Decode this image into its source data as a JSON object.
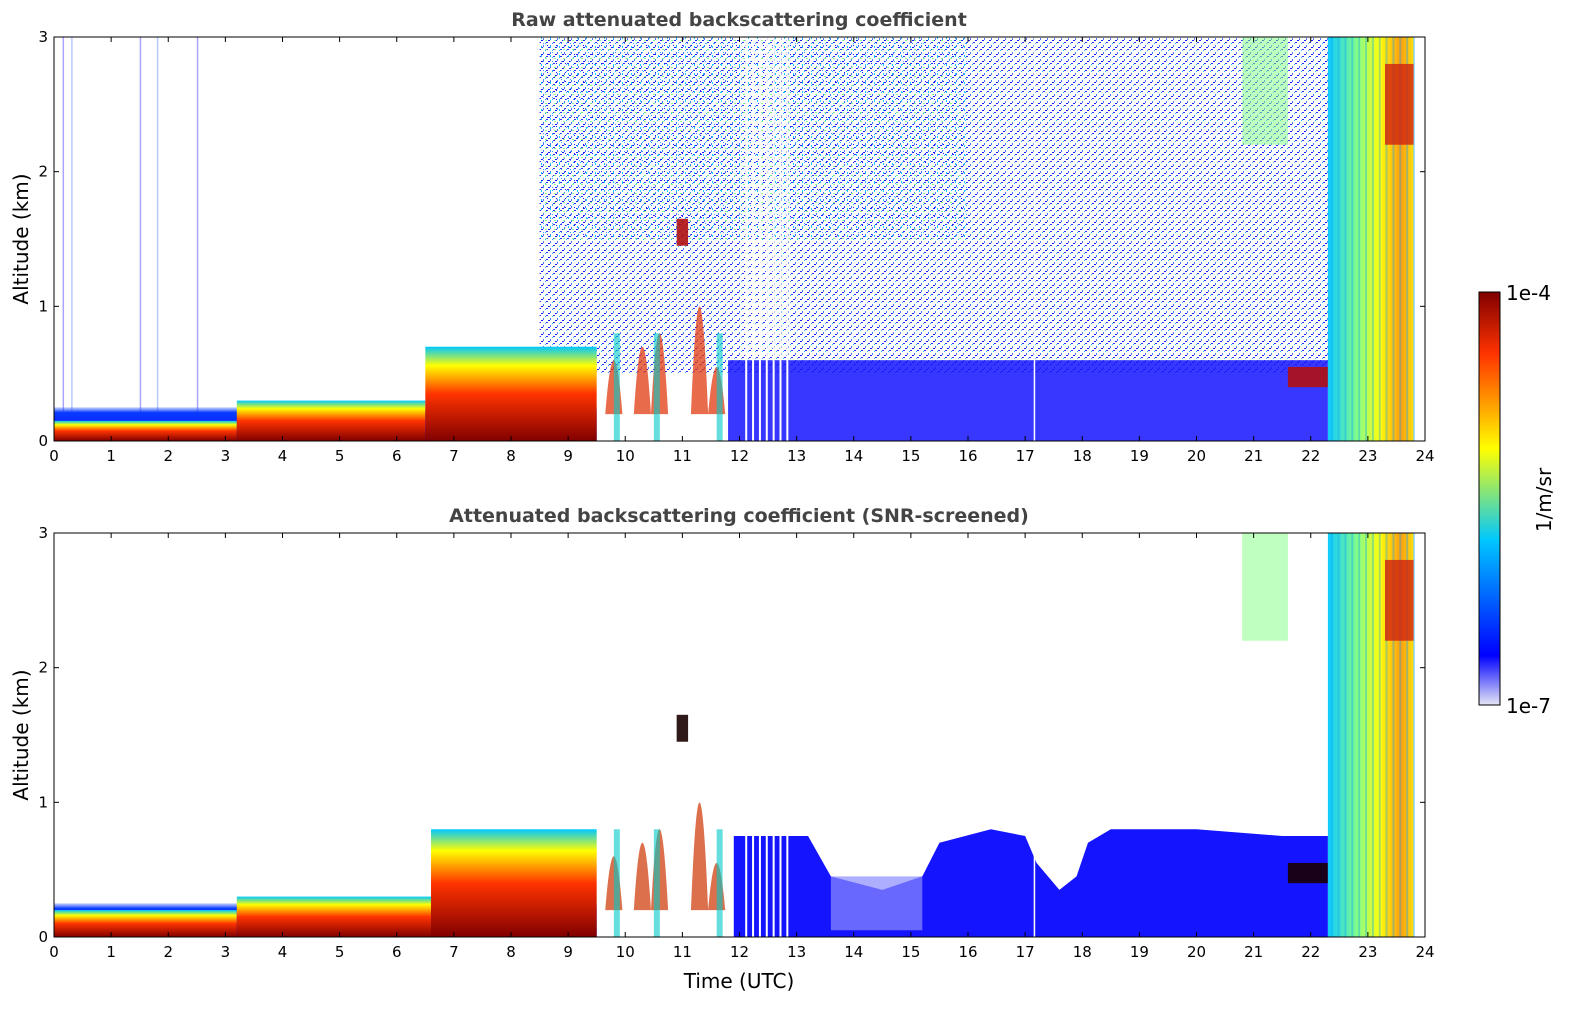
{
  "chart_data": [
    {
      "type": "heatmap",
      "title": "Raw attenuated backscattering coefficient",
      "xlabel": "",
      "ylabel": "Altitude (km)",
      "xlim": [
        0,
        24
      ],
      "ylim": [
        0,
        3
      ],
      "xticks": [
        "0",
        "1",
        "2",
        "3",
        "4",
        "5",
        "6",
        "7",
        "8",
        "9",
        "10",
        "11",
        "12",
        "13",
        "14",
        "15",
        "16",
        "17",
        "18",
        "19",
        "20",
        "21",
        "22",
        "23",
        "24"
      ],
      "yticks": [
        "0",
        "1",
        "2",
        "3"
      ],
      "grid": false,
      "features": [
        {
          "kind": "boundary_layer",
          "x": [
            0,
            3.2
          ],
          "y_top": 0.15,
          "intensity": "high"
        },
        {
          "kind": "boundary_layer",
          "x": [
            3.2,
            6.5
          ],
          "y_top": 0.3,
          "intensity": "high"
        },
        {
          "kind": "boundary_layer",
          "x": [
            6.5,
            9.5
          ],
          "y_top": 0.7,
          "intensity": "high"
        },
        {
          "kind": "cloud",
          "x": [
            10.9,
            11.1
          ],
          "y": [
            1.45,
            1.65
          ],
          "intensity": "high"
        },
        {
          "kind": "noise",
          "x": [
            8.5,
            22.3
          ],
          "y": [
            0.5,
            3.0
          ],
          "intensity": "low"
        },
        {
          "kind": "cloud",
          "x": [
            21.6,
            22.3
          ],
          "y": [
            0.4,
            0.55
          ],
          "intensity": "high"
        },
        {
          "kind": "cloud",
          "x": [
            22.3,
            23.8
          ],
          "y": [
            0,
            3.0
          ],
          "intensity": "medium-high"
        }
      ]
    },
    {
      "type": "heatmap",
      "title": "Attenuated backscattering coefficient (SNR-screened)",
      "xlabel": "Time (UTC)",
      "ylabel": "Altitude (km)",
      "xlim": [
        0,
        24
      ],
      "ylim": [
        0,
        3
      ],
      "xticks": [
        "0",
        "1",
        "2",
        "3",
        "4",
        "5",
        "6",
        "7",
        "8",
        "9",
        "10",
        "11",
        "12",
        "13",
        "14",
        "15",
        "16",
        "17",
        "18",
        "19",
        "20",
        "21",
        "22",
        "23",
        "24"
      ],
      "yticks": [
        "0",
        "1",
        "2",
        "3"
      ],
      "grid": false,
      "features": [
        {
          "kind": "boundary_layer",
          "x": [
            0,
            3.2
          ],
          "y_top": 0.2,
          "intensity": "high"
        },
        {
          "kind": "boundary_layer",
          "x": [
            3.2,
            6.6
          ],
          "y_top": 0.3,
          "intensity": "high"
        },
        {
          "kind": "boundary_layer",
          "x": [
            6.6,
            9.5
          ],
          "y_top": 0.8,
          "intensity": "high"
        },
        {
          "kind": "cloud",
          "x": [
            10.9,
            11.1
          ],
          "y": [
            1.45,
            1.65
          ],
          "intensity": "high"
        },
        {
          "kind": "mixed_layer",
          "x": [
            11.9,
            22.3
          ],
          "y_top": 0.75,
          "intensity": "low"
        },
        {
          "kind": "cloud",
          "x": [
            21.6,
            22.3
          ],
          "y": [
            0.4,
            0.55
          ],
          "intensity": "high"
        },
        {
          "kind": "cloud",
          "x": [
            22.3,
            23.8
          ],
          "y": [
            0,
            3.0
          ],
          "intensity": "medium-high"
        }
      ]
    }
  ],
  "colorbar": {
    "label": "1/m/sr",
    "max_label": "1e-4",
    "min_label": "1e-7",
    "colormap": "jet",
    "colors": [
      "#e6e6f5",
      "#0000ff",
      "#00c8ff",
      "#ffff00",
      "#ff3300",
      "#800000"
    ]
  }
}
